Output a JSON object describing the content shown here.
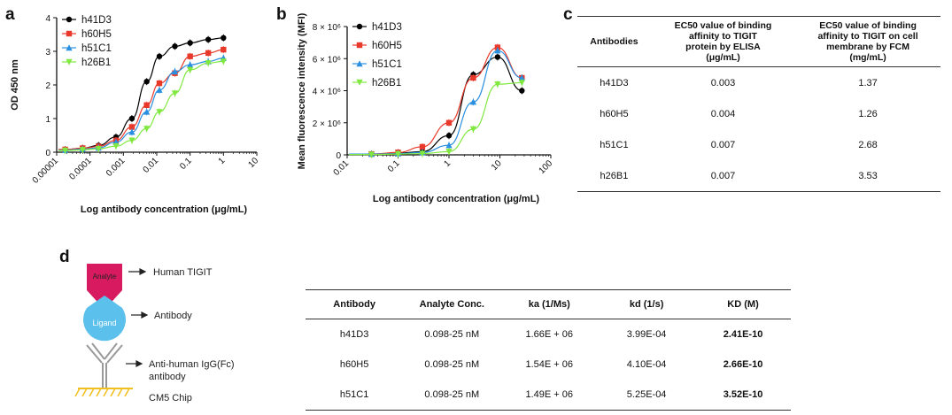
{
  "panels": {
    "a": "a",
    "b": "b",
    "c": "c",
    "d": "d"
  },
  "chart_data": [
    {
      "type": "line",
      "panel": "a",
      "title": "",
      "xlabel": "Log antibody concentration (μg/mL)",
      "ylabel": "OD 450 nm",
      "x_scale": "log",
      "xlim": [
        1e-05,
        10
      ],
      "ylim": [
        0,
        4
      ],
      "xtick_labels": [
        "0.00001",
        "0.0001",
        "0.001",
        "0.01",
        "0.1",
        "1",
        "10"
      ],
      "ytick_labels": [
        "0",
        "1",
        "2",
        "3",
        "4"
      ],
      "legend_position": "top-left",
      "series": [
        {
          "name": "h41D3",
          "color": "#000000",
          "marker": "circle",
          "x": [
            1.8e-05,
            6e-05,
            0.00018,
            0.0006,
            0.0018,
            0.005,
            0.012,
            0.035,
            0.1,
            0.35,
            1
          ],
          "y": [
            0.08,
            0.12,
            0.2,
            0.45,
            1.0,
            2.1,
            2.85,
            3.15,
            3.25,
            3.35,
            3.4
          ]
        },
        {
          "name": "h60H5",
          "color": "#e8392b",
          "marker": "square",
          "x": [
            1.8e-05,
            6e-05,
            0.00018,
            0.0006,
            0.0018,
            0.005,
            0.012,
            0.035,
            0.1,
            0.35,
            1
          ],
          "y": [
            0.08,
            0.12,
            0.17,
            0.35,
            0.75,
            1.4,
            2.05,
            2.35,
            2.85,
            2.95,
            3.05
          ]
        },
        {
          "name": "h51C1",
          "color": "#2a8fe0",
          "marker": "triangle",
          "x": [
            1.8e-05,
            6e-05,
            0.00018,
            0.0006,
            0.0018,
            0.005,
            0.012,
            0.035,
            0.1,
            0.35,
            1
          ],
          "y": [
            0.06,
            0.09,
            0.13,
            0.3,
            0.6,
            1.2,
            1.85,
            2.4,
            2.6,
            2.7,
            2.8
          ]
        },
        {
          "name": "h26B1",
          "color": "#80e840",
          "marker": "triangle-down",
          "x": [
            1.8e-05,
            6e-05,
            0.00018,
            0.0006,
            0.0018,
            0.005,
            0.012,
            0.035,
            0.1,
            0.35,
            1
          ],
          "y": [
            0.05,
            0.07,
            0.1,
            0.18,
            0.35,
            0.7,
            1.2,
            1.75,
            2.45,
            2.65,
            2.7
          ]
        }
      ]
    },
    {
      "type": "line",
      "panel": "b",
      "title": "",
      "xlabel": "Log antibody concentration (μg/mL)",
      "ylabel": "Mean fluorescence intensity (MFI)",
      "x_scale": "log",
      "xlim": [
        0.01,
        100
      ],
      "ylim": [
        0,
        8000000
      ],
      "xtick_labels": [
        "0.01",
        "0.1",
        "1",
        "10",
        "100"
      ],
      "ytick_labels": [
        "0",
        "2 × 10⁶",
        "4 × 10⁶",
        "6 × 10⁶",
        "8 × 10⁶"
      ],
      "legend_position": "top-left",
      "series": [
        {
          "name": "h41D3",
          "color": "#000000",
          "marker": "circle",
          "x": [
            0.03,
            0.1,
            0.3,
            1,
            3,
            9,
            27
          ],
          "y": [
            50000,
            100000,
            200000,
            1200000,
            5000000,
            6100000,
            4000000
          ]
        },
        {
          "name": "h60H5",
          "color": "#e8392b",
          "marker": "square",
          "x": [
            0.03,
            0.1,
            0.3,
            1,
            3,
            9,
            27
          ],
          "y": [
            50000,
            150000,
            500000,
            2000000,
            4800000,
            6700000,
            4800000
          ]
        },
        {
          "name": "h51C1",
          "color": "#2a8fe0",
          "marker": "triangle",
          "x": [
            0.03,
            0.1,
            0.3,
            1,
            3,
            9,
            27
          ],
          "y": [
            50000,
            80000,
            150000,
            600000,
            3300000,
            6500000,
            4800000
          ]
        },
        {
          "name": "h26B1",
          "color": "#80e840",
          "marker": "triangle-down",
          "x": [
            0.03,
            0.1,
            0.3,
            1,
            3,
            9,
            27
          ],
          "y": [
            20000,
            50000,
            80000,
            200000,
            1600000,
            4400000,
            4500000
          ]
        }
      ]
    },
    {
      "type": "table",
      "panel": "c",
      "headers": [
        "Antibodies",
        "EC50 value of binding affinity to TIGIT protein by ELISA (μg/mL)",
        "EC50 value of binding affinity to TIGIT on cell membrane by FCM (mg/mL)"
      ],
      "rows": [
        [
          "h41D3",
          "0.003",
          "1.37"
        ],
        [
          "h60H5",
          "0.004",
          "1.26"
        ],
        [
          "h51C1",
          "0.007",
          "2.68"
        ],
        [
          "h26B1",
          "0.007",
          "3.53"
        ]
      ]
    },
    {
      "type": "table",
      "panel": "d",
      "headers": [
        "Antibody",
        "Analyte Conc.",
        "ka (1/Ms)",
        "kd (1/s)",
        "KD (M)"
      ],
      "rows": [
        [
          "h41D3",
          "0.098-25 nM",
          "1.66E + 06",
          "3.99E-04",
          "2.41E-10"
        ],
        [
          "h60H5",
          "0.098-25 nM",
          "1.54E + 06",
          "4.10E-04",
          "2.66E-10"
        ],
        [
          "h51C1",
          "0.098-25 nM",
          "1.49E + 06",
          "5.25E-04",
          "3.52E-10"
        ]
      ]
    }
  ],
  "table_c": {
    "headers": {
      "col1": "Antibodies",
      "col2": [
        "EC50 value of binding",
        "affinity to TIGIT",
        "protein by ELISA",
        "(μg/mL)"
      ],
      "col3": [
        "EC50 value of binding",
        "affinity to TIGIT on cell",
        "membrane by FCM",
        "(mg/mL)"
      ]
    },
    "rows": [
      {
        "antibody": "h41D3",
        "elisa": "0.003",
        "fcm": "1.37"
      },
      {
        "antibody": "h60H5",
        "elisa": "0.004",
        "fcm": "1.26"
      },
      {
        "antibody": "h51C1",
        "elisa": "0.007",
        "fcm": "2.68"
      },
      {
        "antibody": "h26B1",
        "elisa": "0.007",
        "fcm": "3.53"
      }
    ]
  },
  "table_d": {
    "headers": [
      "Antibody",
      "Analyte Conc.",
      "ka (1/Ms)",
      "kd (1/s)",
      "KD (M)"
    ],
    "rows": [
      {
        "antibody": "h41D3",
        "conc": "0.098-25 nM",
        "ka": "1.66E + 06",
        "kd": "3.99E-04",
        "KD": "2.41E-10"
      },
      {
        "antibody": "h60H5",
        "conc": "0.098-25 nM",
        "ka": "1.54E + 06",
        "kd": "4.10E-04",
        "KD": "2.66E-10"
      },
      {
        "antibody": "h51C1",
        "conc": "0.098-25 nM",
        "ka": "1.49E + 06",
        "kd": "5.25E-04",
        "KD": "3.52E-10"
      }
    ]
  },
  "schematic": {
    "analyte_label": "Analyte",
    "ligand_label": "Ligand",
    "arrow_analyte": "Human TIGIT",
    "arrow_ligand": "Antibody",
    "arrow_capture_line1": "Anti-human IgG(Fc)",
    "arrow_capture_line2": "antibody",
    "chip_label": "CM5 Chip",
    "colors": {
      "analyte": "#d81b60",
      "ligand": "#5bc0eb",
      "capture": "#999999",
      "chip": "#f0c020"
    }
  }
}
